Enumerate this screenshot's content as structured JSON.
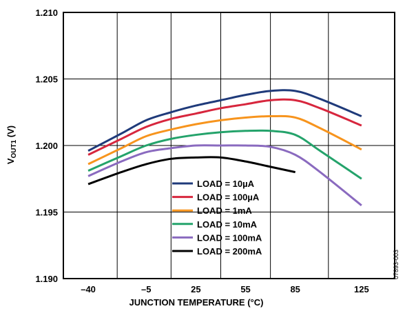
{
  "chart_data": {
    "type": "line",
    "title": "",
    "xlabel": "JUNCTION TEMPERATURE (°C)",
    "ylabel_main": "V",
    "ylabel_sub": "OUT1",
    "ylabel_unit": " (V)",
    "xlim": [
      -55,
      145
    ],
    "ylim": [
      1.19,
      1.21
    ],
    "x_ticks": [
      -40,
      -5,
      25,
      55,
      85,
      125
    ],
    "x_tick_labels": [
      "–40",
      "–5",
      "25",
      "55",
      "85",
      "125"
    ],
    "y_ticks": [
      1.19,
      1.195,
      1.2,
      1.205,
      1.21
    ],
    "y_tick_labels": [
      "1.190",
      "1.195",
      "1.200",
      "1.205",
      "1.210"
    ],
    "figure_id": "07893-003",
    "grid": true,
    "legend_position": "bottom-center",
    "series": [
      {
        "name": "LOAD = 10µA",
        "color": "#1f3a7a",
        "x": [
          -40,
          -20,
          -5,
          10,
          25,
          40,
          55,
          70,
          85,
          100,
          125
        ],
        "y": [
          1.1996,
          1.2009,
          1.2019,
          1.2025,
          1.203,
          1.2034,
          1.2038,
          1.2041,
          1.2041,
          1.2035,
          1.2022
        ]
      },
      {
        "name": "LOAD = 100µA",
        "color": "#d7263d",
        "x": [
          -40,
          -20,
          -5,
          10,
          25,
          40,
          55,
          70,
          85,
          100,
          125
        ],
        "y": [
          1.1993,
          1.2005,
          1.2014,
          1.202,
          1.2024,
          1.2028,
          1.2031,
          1.2034,
          1.2034,
          1.2028,
          1.2015
        ]
      },
      {
        "name": "LOAD = 1mA",
        "color": "#f7941d",
        "x": [
          -40,
          -20,
          -5,
          10,
          25,
          40,
          55,
          70,
          85,
          100,
          125
        ],
        "y": [
          1.1986,
          1.1998,
          1.2007,
          1.2012,
          1.2016,
          1.2019,
          1.2021,
          1.2022,
          1.2021,
          1.2013,
          1.1997
        ]
      },
      {
        "name": "LOAD = 10mA",
        "color": "#24a36b",
        "x": [
          -40,
          -20,
          -5,
          10,
          25,
          40,
          55,
          70,
          85,
          100,
          125
        ],
        "y": [
          1.1981,
          1.1992,
          1.2,
          1.2005,
          1.2008,
          1.201,
          1.2011,
          1.2011,
          1.2008,
          1.1996,
          1.1975
        ]
      },
      {
        "name": "LOAD = 100mA",
        "color": "#8a6abf",
        "x": [
          -40,
          -20,
          -5,
          10,
          25,
          40,
          55,
          70,
          85,
          100,
          125
        ],
        "y": [
          1.1977,
          1.1988,
          1.1995,
          1.1998,
          1.2,
          1.2,
          1.2,
          1.1999,
          1.1993,
          1.198,
          1.1955
        ]
      },
      {
        "name": "LOAD = 200mA",
        "color": "#000000",
        "x": [
          -40,
          -20,
          -5,
          10,
          25,
          40,
          55,
          70,
          85
        ],
        "y": [
          1.1971,
          1.198,
          1.1986,
          1.199,
          1.1991,
          1.1991,
          1.1988,
          1.1984,
          1.198
        ]
      }
    ]
  }
}
